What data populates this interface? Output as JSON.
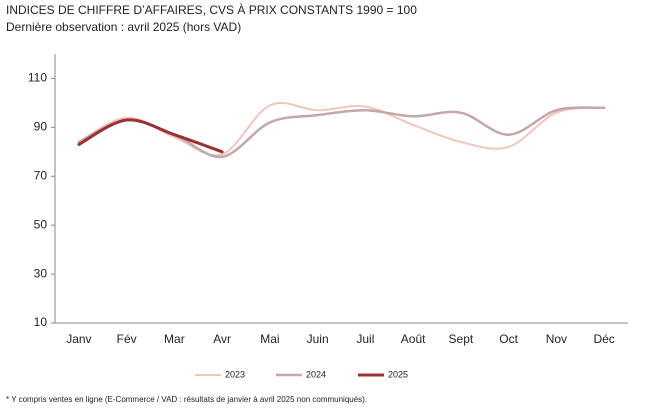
{
  "chart_data": {
    "type": "line",
    "title": "INDICES DE CHIFFRE D’AFFAIRES, CVS À PRIX CONSTANTS 1990 = 100",
    "subtitle": "Dernière observation : avril 2025 (hors VAD)",
    "footnote": "* Y compris ventes en ligne (E-Commerce / VAD : résultats de janvier à avril 2025 non communiqués).",
    "categories": [
      "Janv",
      "Fév",
      "Mar",
      "Avr",
      "Mai",
      "Juin",
      "Juil",
      "Août",
      "Sept",
      "Oct",
      "Nov",
      "Déc"
    ],
    "series": [
      {
        "name": "2023",
        "color": "#f0c6bd",
        "width": 2,
        "values": [
          84,
          94,
          86,
          79,
          99,
          97,
          98.5,
          91,
          84,
          82,
          96,
          98
        ]
      },
      {
        "name": "2024",
        "color": "#c3a6ae",
        "width": 2.5,
        "values": [
          84,
          93,
          87,
          78,
          92,
          95,
          97,
          94.5,
          96,
          87,
          97,
          98
        ]
      },
      {
        "name": "2025",
        "color": "#9b3035",
        "width": 3,
        "values": [
          83,
          93,
          87,
          80,
          null,
          null,
          null,
          null,
          null,
          null,
          null,
          null
        ]
      }
    ],
    "ylim": [
      10,
      120
    ],
    "yticks": [
      10,
      30,
      50,
      70,
      90,
      110
    ],
    "legend": "bottom"
  }
}
